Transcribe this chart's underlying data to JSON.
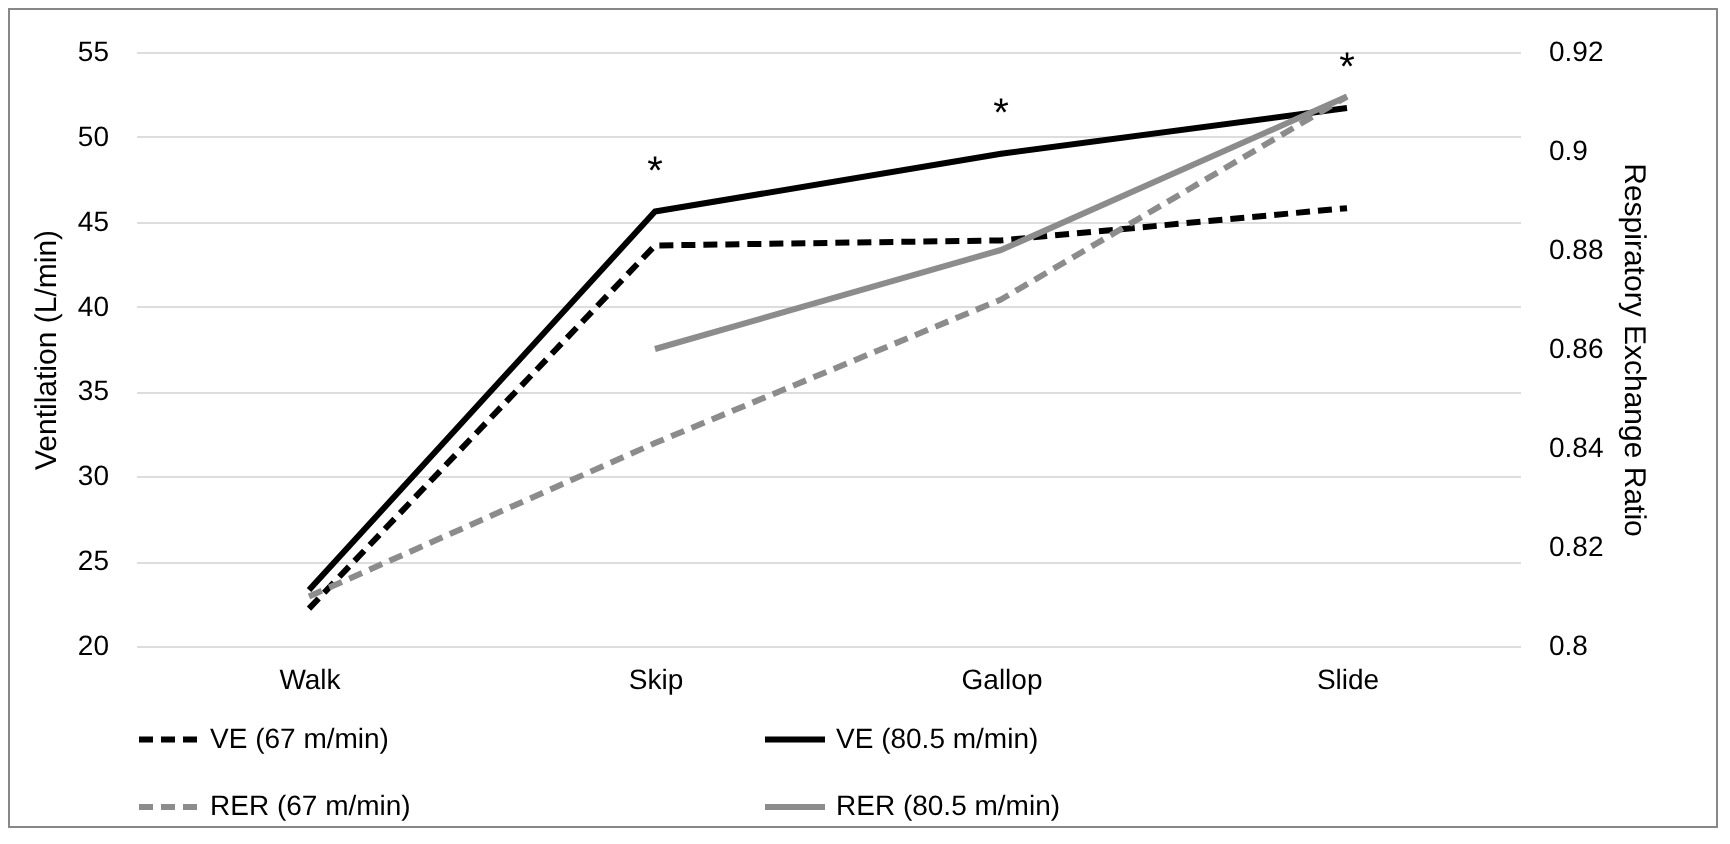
{
  "chart_data": {
    "type": "line",
    "ylabel": "Ventilation (L/min)",
    "y2label": "Respiratory Exchange Ratio",
    "categories": [
      "Walk",
      "Skip",
      "Gallop",
      "Slide"
    ],
    "series": [
      {
        "name": "VE (67 m/min)",
        "color": "#000000",
        "line_style": "dashed",
        "values": [
          22.2,
          43.6,
          43.9,
          45.8
        ]
      },
      {
        "name": "VE (80.5 m/min)",
        "color": "#000000",
        "line_style": "solid",
        "values": [
          23.3,
          45.6,
          49.0,
          51.7
        ]
      },
      {
        "name": "RER (67 m/min)",
        "color": "#8c8c8c",
        "line_style": "dashed",
        "axis": "y2",
        "values": [
          0.81,
          0.841,
          0.87,
          0.911
        ]
      },
      {
        "name": "RER (80.5 m/min)",
        "color": "#8c8c8c",
        "line_style": "solid",
        "axis": "y2",
        "values": [
          null,
          0.86,
          0.88,
          0.911
        ]
      }
    ],
    "ylim": [
      20,
      55
    ],
    "yticks": [
      20,
      25,
      30,
      35,
      40,
      45,
      50,
      55
    ],
    "y2lim": [
      0.8,
      0.92
    ],
    "y2ticks": [
      0.8,
      0.82,
      0.84,
      0.86,
      0.88,
      0.9,
      0.92
    ],
    "grid": "y",
    "legend": "bottom",
    "annotations": [
      {
        "text": "*",
        "x": "Skip",
        "y": 45.6
      },
      {
        "text": "*",
        "x": "Gallop",
        "y": 49.0
      },
      {
        "text": "*",
        "x": "Slide",
        "y": 51.7
      }
    ]
  }
}
